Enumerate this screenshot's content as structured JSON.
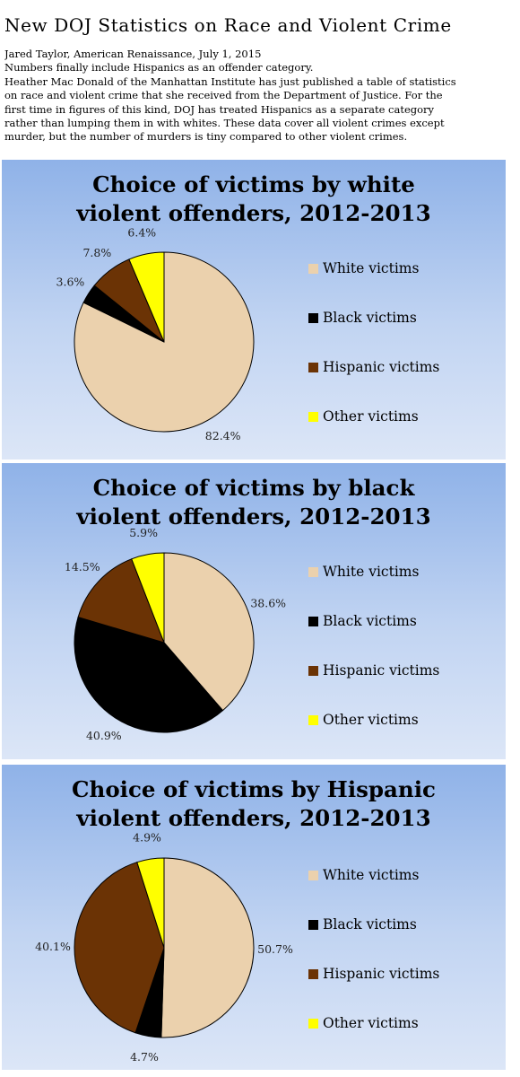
{
  "page": {
    "title": "New DOJ Statistics on Race and Violent Crime",
    "intro_lines": [
      "Jared Taylor, American Renaissance, July 1, 2015",
      "Numbers finally include Hispanics as an offender category.",
      "Heather Mac Donald of the Manhattan Institute has just published a table of statistics",
      "on race and violent crime that she received from the Department of Justice. For the",
      "first time in figures of this kind, DOJ has treated Hispanics as a separate category",
      "rather than lumping them in with whites. These data cover all violent crimes except",
      "murder, but the number of murders is tiny compared to other violent crimes."
    ]
  },
  "colors": {
    "white_victims": "#ebd1ad",
    "black_victims": "#000000",
    "hispanic_victims": "#6b3305",
    "other_victims": "#ffff00"
  },
  "chart_data": [
    {
      "type": "pie",
      "title_lines": [
        "Choice of victims by white",
        "violent offenders, 2012-2013"
      ],
      "legend_position": "right",
      "categories": [
        "White victims",
        "Black victims",
        "Hispanic victims",
        "Other victims"
      ],
      "values": [
        82.4,
        3.6,
        7.8,
        6.4
      ],
      "data_labels": [
        "82.4%",
        "3.6%",
        "7.8%",
        "6.4%"
      ]
    },
    {
      "type": "pie",
      "title_lines": [
        "Choice of victims by black",
        "violent offenders, 2012-2013"
      ],
      "legend_position": "right",
      "categories": [
        "White victims",
        "Black victims",
        "Hispanic victims",
        "Other victims"
      ],
      "values": [
        38.6,
        40.9,
        14.5,
        5.9
      ],
      "data_labels": [
        "38.6%",
        "40.9%",
        "14.5%",
        "5.9%"
      ]
    },
    {
      "type": "pie",
      "title_lines": [
        "Choice of victims by Hispanic",
        "violent offenders, 2012-2013"
      ],
      "legend_position": "right",
      "categories": [
        "White victims",
        "Black victims",
        "Hispanic victims",
        "Other victims"
      ],
      "values": [
        50.7,
        4.7,
        40.1,
        4.9
      ],
      "data_labels": [
        "50.7%",
        "4.7%",
        "40.1%",
        "4.9%"
      ]
    }
  ]
}
